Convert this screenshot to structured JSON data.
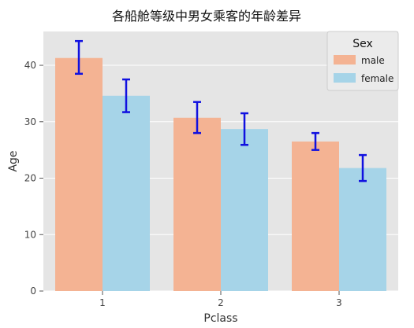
{
  "chart_data": {
    "type": "bar",
    "title": "各船舱等级中男女乘客的年龄差异",
    "xlabel": "Pclass",
    "ylabel": "Age",
    "categories": [
      "1",
      "2",
      "3"
    ],
    "ylim": [
      0,
      46
    ],
    "yticks": [
      0,
      10,
      20,
      30,
      40
    ],
    "grid": true,
    "legend": {
      "title": "Sex",
      "placement": "top-right"
    },
    "series": [
      {
        "name": "male",
        "color": "#f4b393",
        "values": [
          41.3,
          30.7,
          26.5
        ],
        "err_low": [
          38.5,
          28.0,
          25.0
        ],
        "err_high": [
          44.3,
          33.5,
          28.0
        ]
      },
      {
        "name": "female",
        "color": "#a6d4e8",
        "values": [
          34.6,
          28.7,
          21.8
        ],
        "err_low": [
          31.7,
          25.9,
          19.5
        ],
        "err_high": [
          37.5,
          31.5,
          24.1
        ]
      }
    ],
    "errorbar_color": "#1010e0",
    "background": "#e5e5e5",
    "grid_color": "#ffffff"
  }
}
